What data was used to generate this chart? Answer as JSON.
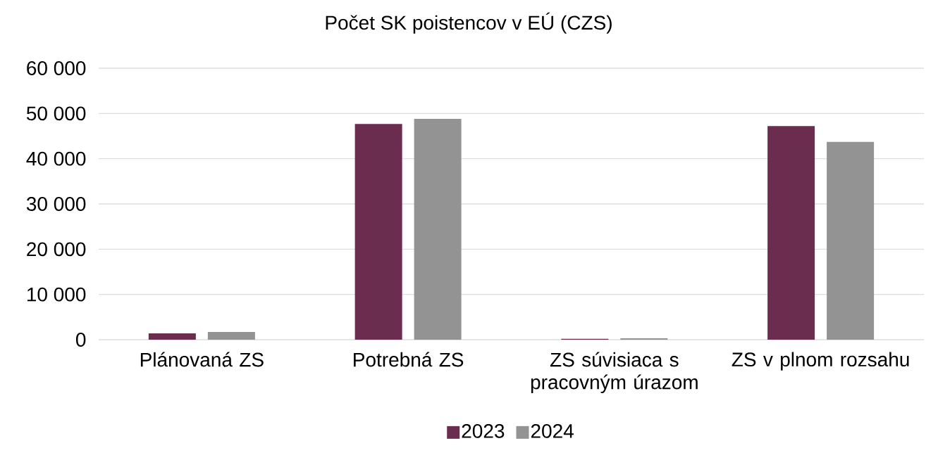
{
  "chart_data": {
    "type": "bar",
    "title": "Počet SK poistencov v EÚ (CZS)",
    "categories": [
      "Plánovaná ZS",
      "Potrebná ZS",
      "ZS súvisiaca s pracovným úrazom",
      "ZS v plnom rozsahu"
    ],
    "series": [
      {
        "name": "2023",
        "color": "#6b2d4f",
        "values": [
          1400,
          47700,
          200,
          47200
        ]
      },
      {
        "name": "2024",
        "color": "#939393",
        "values": [
          1700,
          48800,
          300,
          43700
        ]
      }
    ],
    "ylim": [
      0,
      60000
    ],
    "yticks": [
      {
        "value": 0,
        "label": "0"
      },
      {
        "value": 10000,
        "label": "10 000"
      },
      {
        "value": 20000,
        "label": "20 000"
      },
      {
        "value": 30000,
        "label": "30 000"
      },
      {
        "value": 40000,
        "label": "40 000"
      },
      {
        "value": 50000,
        "label": "50 000"
      },
      {
        "value": 60000,
        "label": "60 000"
      }
    ],
    "grid": "y",
    "legend": "bottom"
  }
}
